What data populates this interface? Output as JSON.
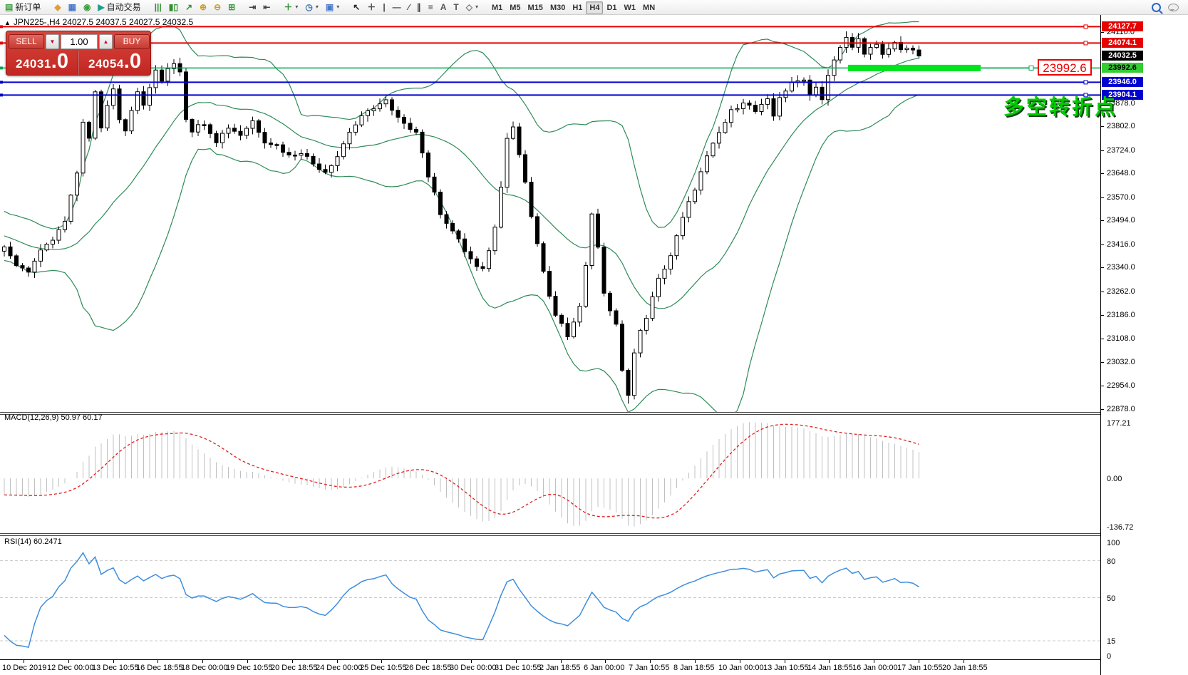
{
  "toolbar": {
    "groups": [
      {
        "items": [
          {
            "id": "new-order-button",
            "glyph": "▤",
            "color": "#3f9e3f",
            "label": "新订单"
          }
        ]
      },
      {
        "items": [
          {
            "id": "profiles-button",
            "glyph": "◆",
            "color": "#e0a030"
          },
          {
            "id": "market-watch-button",
            "glyph": "▦",
            "color": "#4a78c8"
          },
          {
            "id": "navigator-button",
            "glyph": "◉",
            "color": "#3f9e3f"
          },
          {
            "id": "autotrading-button",
            "glyph": "▶",
            "color": "#1f9e8e",
            "label": "自动交易"
          }
        ]
      },
      {
        "items": [
          {
            "id": "bar-chart-button",
            "glyph": "|||",
            "color": "#2f8f2f"
          },
          {
            "id": "candlestick-button",
            "glyph": "▮▯",
            "color": "#2f8f2f"
          },
          {
            "id": "line-chart-button",
            "glyph": "↗",
            "color": "#2f8f2f"
          },
          {
            "id": "zoom-in-button",
            "glyph": "⊕",
            "color": "#c8a020"
          },
          {
            "id": "zoom-out-button",
            "glyph": "⊖",
            "color": "#c8a020"
          },
          {
            "id": "tile-windows-button",
            "glyph": "⊞",
            "color": "#3f9e3f"
          }
        ]
      },
      {
        "items": [
          {
            "id": "auto-scroll-button",
            "glyph": "⇥",
            "color": "#444"
          },
          {
            "id": "chart-shift-button",
            "glyph": "⇤",
            "color": "#444"
          }
        ]
      },
      {
        "items": [
          {
            "id": "indicators-button",
            "glyph": "＋",
            "color": "#2f8f2f",
            "caret": true
          },
          {
            "id": "periods-button",
            "glyph": "◷",
            "color": "#3a6fb0",
            "caret": true
          },
          {
            "id": "templates-button",
            "glyph": "▣",
            "color": "#4a78c8",
            "caret": true
          }
        ]
      },
      {
        "items": [
          {
            "id": "cursor-button",
            "glyph": "↖",
            "color": "#222"
          },
          {
            "id": "crosshair-button",
            "glyph": "＋",
            "color": "#444"
          },
          {
            "id": "vertical-line-button",
            "glyph": "|",
            "color": "#444"
          },
          {
            "id": "horizontal-line-button",
            "glyph": "—",
            "color": "#444"
          },
          {
            "id": "trendline-button",
            "glyph": "∕",
            "color": "#444"
          },
          {
            "id": "channel-button",
            "glyph": "∥",
            "color": "#444"
          },
          {
            "id": "fibonacci-button",
            "glyph": "≡",
            "color": "#444"
          },
          {
            "id": "text-button",
            "glyph": "A",
            "color": "#555"
          },
          {
            "id": "label-button",
            "glyph": "T",
            "color": "#555"
          },
          {
            "id": "arrows-button",
            "glyph": "◇",
            "color": "#777",
            "caret": true
          }
        ]
      }
    ],
    "timeframes": [
      "M1",
      "M5",
      "M15",
      "M30",
      "H1",
      "H4",
      "D1",
      "W1",
      "MN"
    ],
    "active_timeframe": "H4"
  },
  "chart": {
    "collapse_arrow": "▲",
    "title": "JPN225-,H4  24027.5 24037.5 24027.5 24032.5"
  },
  "trade_panel": {
    "sell_label": "SELL",
    "buy_label": "BUY",
    "volume": "1.00",
    "volume_down_glyph": "▼",
    "volume_up_glyph": "▲",
    "sell_price_main": "24031",
    "sell_price_dec": ".0",
    "buy_price_main": "24054",
    "buy_price_dec": ".0"
  },
  "annotation": {
    "price_tag": "23992.6",
    "text": "多空转折点"
  },
  "macd_label": "MACD(12,26,9) 50.97 60.17",
  "rsi_label": "RSI(14) 60.2471",
  "price_axis": {
    "plain_ticks": [
      "24110.0",
      "23878.0",
      "23802.0",
      "23724.0",
      "23648.0",
      "23570.0",
      "23494.0",
      "23416.0",
      "23340.0",
      "23262.0",
      "23186.0",
      "23108.0",
      "23032.0",
      "22954.0",
      "22878.0"
    ],
    "levels": [
      {
        "value": 24127.7,
        "label": "24127.7",
        "line": "#e60000",
        "bg": "#e60000",
        "fg": "#fff",
        "width": 2
      },
      {
        "value": 24074.1,
        "label": "24074.1",
        "line": "#e60000",
        "bg": "#e60000",
        "fg": "#fff",
        "width": 2
      },
      {
        "value": 24032.5,
        "label": "24032.5",
        "line": "none",
        "bg": "#000000",
        "fg": "#fff",
        "width": 0
      },
      {
        "value": 23992.6,
        "label": "23992.6",
        "line": "#00a651",
        "bg": "#33cc33",
        "fg": "#000",
        "width": 1.5
      },
      {
        "value": 23946.0,
        "label": "23946.0",
        "line": "#0000d0",
        "bg": "#0000d0",
        "fg": "#fff",
        "width": 2
      },
      {
        "value": 23904.1,
        "label": "23904.1",
        "line": "#0000d0",
        "bg": "#0000d0",
        "fg": "#fff",
        "width": 2
      }
    ]
  },
  "macd_axis": {
    "top": "177.21",
    "zero": "0.00",
    "bottom": "-136.72"
  },
  "rsi_axis": {
    "labels": [
      "100",
      "80",
      "50",
      "15",
      "0"
    ],
    "level_lines": [
      80,
      50,
      15
    ]
  },
  "time_axis": {
    "labels": [
      "10 Dec 2019",
      "12 Dec 00:00",
      "13 Dec 10:55",
      "16 Dec 18:55",
      "18 Dec 00:00",
      "19 Dec 10:55",
      "20 Dec 18:55",
      "24 Dec 00:00",
      "25 Dec 10:55",
      "26 Dec 18:55",
      "30 Dec 00:00",
      "31 Dec 10:55",
      "2 Jan 18:55",
      "6 Jan 00:00",
      "7 Jan 10:55",
      "8 Jan 18:55",
      "10 Jan 00:00",
      "13 Jan 10:55",
      "14 Jan 18:55",
      "16 Jan 00:00",
      "17 Jan 10:55",
      "20 Jan 18:55"
    ]
  },
  "chart_data": {
    "type": "candlestick",
    "symbol": "JPN225-",
    "timeframe": "H4",
    "current_ohlc": {
      "open": 24027.5,
      "high": 24037.5,
      "low": 24027.5,
      "close": 24032.5
    },
    "ylim": [
      22868,
      24166
    ],
    "candle_count": 152,
    "pre_candles": 30,
    "close_anchors_pre": [
      [
        -30,
        23620
      ],
      [
        -22,
        23540
      ],
      [
        -14,
        23470
      ],
      [
        -8,
        23430
      ],
      [
        -4,
        23400
      ],
      [
        -1,
        23395
      ]
    ],
    "close_anchors": [
      [
        0,
        23400
      ],
      [
        2,
        23350
      ],
      [
        4,
        23330
      ],
      [
        6,
        23390
      ],
      [
        8,
        23430
      ],
      [
        10,
        23490
      ],
      [
        12,
        23650
      ],
      [
        13,
        23820
      ],
      [
        14,
        23760
      ],
      [
        15,
        23910
      ],
      [
        16,
        23800
      ],
      [
        17,
        23870
      ],
      [
        18,
        23930
      ],
      [
        19,
        23830
      ],
      [
        20,
        23790
      ],
      [
        21,
        23860
      ],
      [
        22,
        23910
      ],
      [
        23,
        23870
      ],
      [
        24,
        23930
      ],
      [
        25,
        23980
      ],
      [
        26,
        23950
      ],
      [
        27,
        23995
      ],
      [
        28,
        24010
      ],
      [
        29,
        23985
      ],
      [
        30,
        23830
      ],
      [
        31,
        23790
      ],
      [
        33,
        23815
      ],
      [
        35,
        23755
      ],
      [
        37,
        23800
      ],
      [
        39,
        23775
      ],
      [
        41,
        23820
      ],
      [
        43,
        23755
      ],
      [
        45,
        23740
      ],
      [
        47,
        23705
      ],
      [
        49,
        23720
      ],
      [
        51,
        23680
      ],
      [
        53,
        23655
      ],
      [
        55,
        23705
      ],
      [
        57,
        23785
      ],
      [
        59,
        23830
      ],
      [
        61,
        23865
      ],
      [
        63,
        23885
      ],
      [
        64,
        23850
      ],
      [
        66,
        23805
      ],
      [
        68,
        23790
      ],
      [
        70,
        23640
      ],
      [
        72,
        23520
      ],
      [
        74,
        23460
      ],
      [
        76,
        23395
      ],
      [
        78,
        23340
      ],
      [
        79,
        23330
      ],
      [
        80,
        23400
      ],
      [
        81,
        23470
      ],
      [
        82,
        23610
      ],
      [
        83,
        23770
      ],
      [
        84,
        23800
      ],
      [
        85,
        23710
      ],
      [
        86,
        23620
      ],
      [
        87,
        23500
      ],
      [
        88,
        23420
      ],
      [
        89,
        23320
      ],
      [
        90,
        23250
      ],
      [
        91,
        23180
      ],
      [
        92,
        23150
      ],
      [
        93,
        23120
      ],
      [
        94,
        23170
      ],
      [
        95,
        23210
      ],
      [
        96,
        23350
      ],
      [
        97,
        23520
      ],
      [
        98,
        23400
      ],
      [
        99,
        23260
      ],
      [
        100,
        23200
      ],
      [
        101,
        23150
      ],
      [
        102,
        23000
      ],
      [
        103,
        22930
      ],
      [
        104,
        23060
      ],
      [
        105,
        23130
      ],
      [
        106,
        23180
      ],
      [
        107,
        23240
      ],
      [
        108,
        23300
      ],
      [
        110,
        23380
      ],
      [
        112,
        23500
      ],
      [
        114,
        23600
      ],
      [
        116,
        23700
      ],
      [
        118,
        23780
      ],
      [
        120,
        23850
      ],
      [
        122,
        23885
      ],
      [
        124,
        23850
      ],
      [
        126,
        23885
      ],
      [
        127,
        23835
      ],
      [
        128,
        23900
      ],
      [
        130,
        23940
      ],
      [
        132,
        23960
      ],
      [
        133,
        23905
      ],
      [
        134,
        23935
      ],
      [
        135,
        23890
      ],
      [
        136,
        23965
      ],
      [
        137,
        24015
      ],
      [
        138,
        24060
      ],
      [
        139,
        24090
      ],
      [
        140,
        24068
      ],
      [
        141,
        24085
      ],
      [
        142,
        24032
      ],
      [
        143,
        24055
      ],
      [
        144,
        24070
      ],
      [
        145,
        24035
      ],
      [
        146,
        24060
      ],
      [
        147,
        24078
      ],
      [
        148,
        24045
      ],
      [
        149,
        24060
      ],
      [
        150,
        24044
      ],
      [
        151,
        24032.5
      ]
    ],
    "extreme_low": 22895,
    "extreme_high": 24112,
    "indicators": {
      "bollinger": {
        "period": 20,
        "deviation": 2,
        "color": "#2e8b57"
      },
      "macd": {
        "fast": 12,
        "slow": 26,
        "signal": 9,
        "value": 50.97,
        "signal_value": 60.17,
        "scale_max": 177.21,
        "scale_min": -136.72,
        "histogram_color": "#c0c0c0",
        "signal_color": "#e02020"
      },
      "rsi": {
        "period": 14,
        "value": 60.2471,
        "color": "#3e8ede",
        "levels": [
          80,
          50,
          15
        ],
        "range": [
          0,
          100
        ]
      }
    },
    "horizontal_levels": [
      24127.7,
      24074.1,
      23992.6,
      23946.0,
      23904.1
    ],
    "highlight_segment": {
      "price": 23992.6,
      "color": "#00e41c"
    },
    "candle_up_fill": "#ffffff",
    "candle_down_fill": "#000000",
    "candle_stroke": "#000000"
  }
}
